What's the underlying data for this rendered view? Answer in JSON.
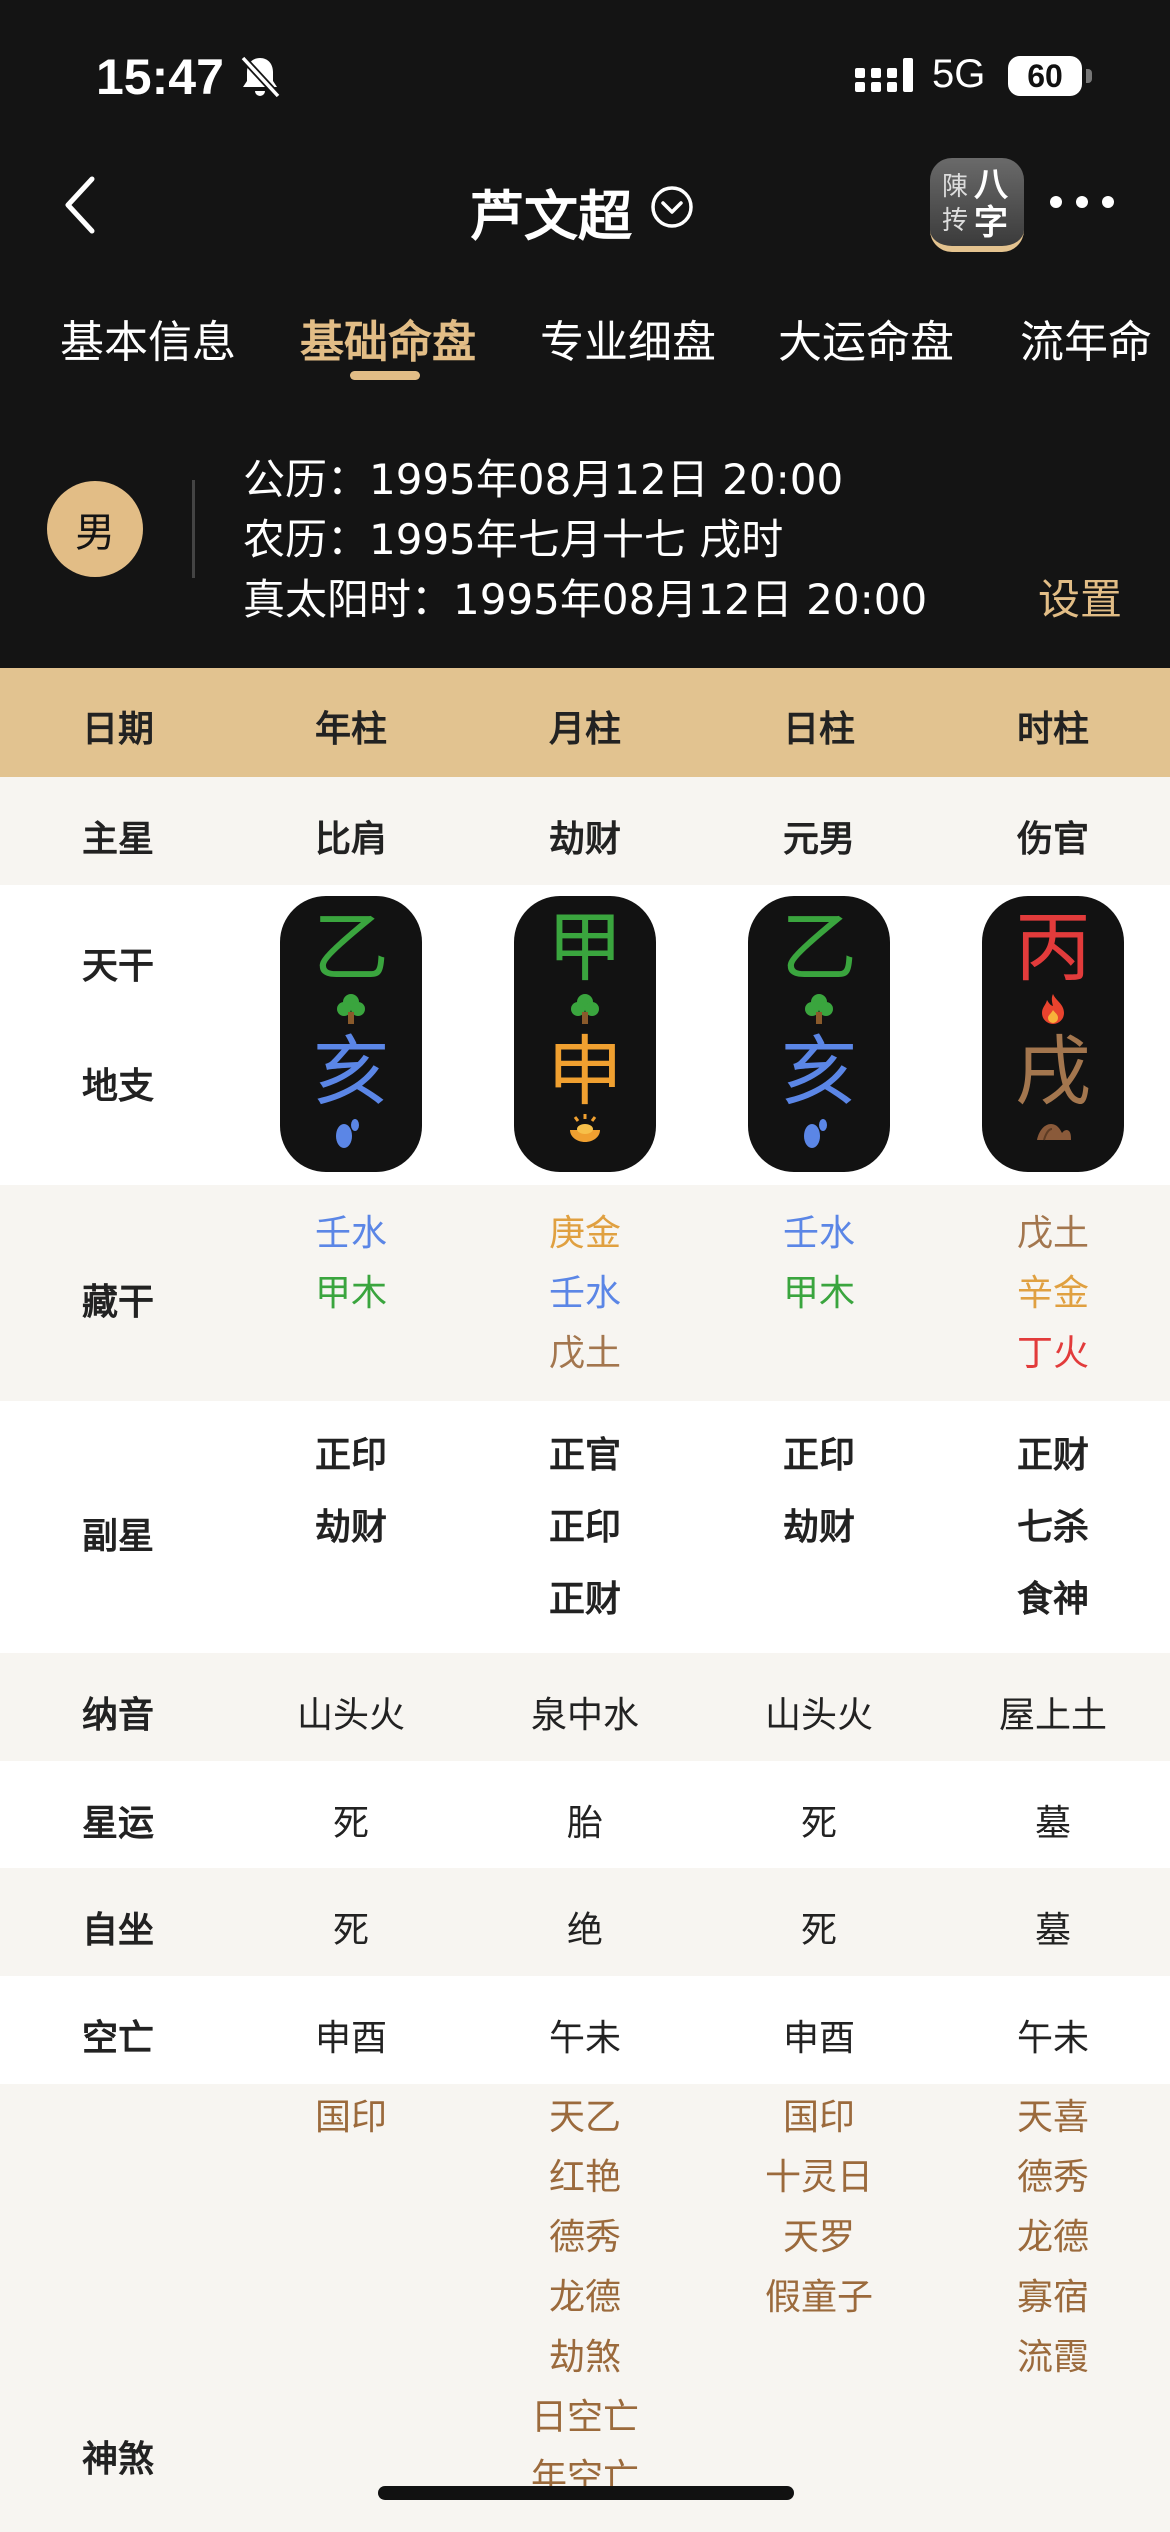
{
  "status_bar": {
    "time": "15:47",
    "network": "5G",
    "battery": "60"
  },
  "nav": {
    "title": "芦文超",
    "logo_left": "陳抟",
    "logo_right": "八字"
  },
  "tabs": [
    {
      "label": "基本信息"
    },
    {
      "label": "基础命盘"
    },
    {
      "label": "专业细盘"
    },
    {
      "label": "大运命盘"
    },
    {
      "label": "流年命"
    }
  ],
  "active_tab": "基础命盘",
  "profile": {
    "gender": "男",
    "solar": "公历：1995年08月12日 20:00",
    "lunar": "农历：1995年七月十七 戌时",
    "true_solar": "真太阳时：1995年08月12日 20:00",
    "settings_label": "设置"
  },
  "table": {
    "headers": [
      "日期",
      "年柱",
      "月柱",
      "日柱",
      "时柱"
    ],
    "main_star": {
      "label": "主星",
      "values": [
        "比肩",
        "劫财",
        "元男",
        "伤官"
      ]
    },
    "tiangan_label": "天干",
    "dizhi_label": "地支",
    "pillars": [
      {
        "stem": "乙",
        "stem_color": "#3aa53e",
        "stem_icon": "tree-icon",
        "branch": "亥",
        "branch_color": "#5b86e6",
        "branch_icon": "water-drop-icon"
      },
      {
        "stem": "甲",
        "stem_color": "#3aa53e",
        "stem_icon": "tree-icon",
        "branch": "申",
        "branch_color": "#f0a030",
        "branch_icon": "gold-ingot-icon"
      },
      {
        "stem": "乙",
        "stem_color": "#3aa53e",
        "stem_icon": "tree-icon",
        "branch": "亥",
        "branch_color": "#5b86e6",
        "branch_icon": "water-drop-icon"
      },
      {
        "stem": "丙",
        "stem_color": "#e23b3b",
        "stem_icon": "fire-icon",
        "branch": "戌",
        "branch_color": "#a3764e",
        "branch_icon": "earth-mound-icon"
      }
    ],
    "hidden_stems": {
      "label": "藏干",
      "columns": [
        [
          {
            "text": "壬水",
            "color": "#5b86e6"
          },
          {
            "text": "甲木",
            "color": "#3aa53e"
          }
        ],
        [
          {
            "text": "庚金",
            "color": "#e0a040"
          },
          {
            "text": "壬水",
            "color": "#5b86e6"
          },
          {
            "text": "戊土",
            "color": "#a3764e"
          }
        ],
        [
          {
            "text": "壬水",
            "color": "#5b86e6"
          },
          {
            "text": "甲木",
            "color": "#3aa53e"
          }
        ],
        [
          {
            "text": "戊土",
            "color": "#a3764e"
          },
          {
            "text": "辛金",
            "color": "#e0a040"
          },
          {
            "text": "丁火",
            "color": "#e23b3b"
          }
        ]
      ]
    },
    "sub_stars": {
      "label": "副星",
      "columns": [
        [
          "正印",
          "劫财"
        ],
        [
          "正官",
          "正印",
          "正财"
        ],
        [
          "正印",
          "劫财"
        ],
        [
          "正财",
          "七杀",
          "食神"
        ]
      ]
    },
    "nayin": {
      "label": "纳音",
      "values": [
        "山头火",
        "泉中水",
        "山头火",
        "屋上土"
      ]
    },
    "xingyun": {
      "label": "星运",
      "values": [
        "死",
        "胎",
        "死",
        "墓"
      ]
    },
    "zizuo": {
      "label": "自坐",
      "values": [
        "死",
        "绝",
        "死",
        "墓"
      ]
    },
    "kongwang": {
      "label": "空亡",
      "values": [
        "申酉",
        "午未",
        "申酉",
        "午未"
      ]
    },
    "shensha": {
      "label": "神煞",
      "color": "#9b6a3c",
      "columns": [
        [
          "国印"
        ],
        [
          "天乙",
          "红艳",
          "德秀",
          "龙德",
          "劫煞",
          "日空亡",
          "年空亡"
        ],
        [
          "国印",
          "十灵日",
          "天罗",
          "假童子"
        ],
        [
          "天喜",
          "德秀",
          "龙德",
          "寡宿",
          "流霞"
        ]
      ]
    }
  },
  "colors": {
    "accent": "#e2bd86",
    "header_bg": "#141414",
    "table_header": "#e2c390",
    "zebra": "#f7f5f1"
  }
}
